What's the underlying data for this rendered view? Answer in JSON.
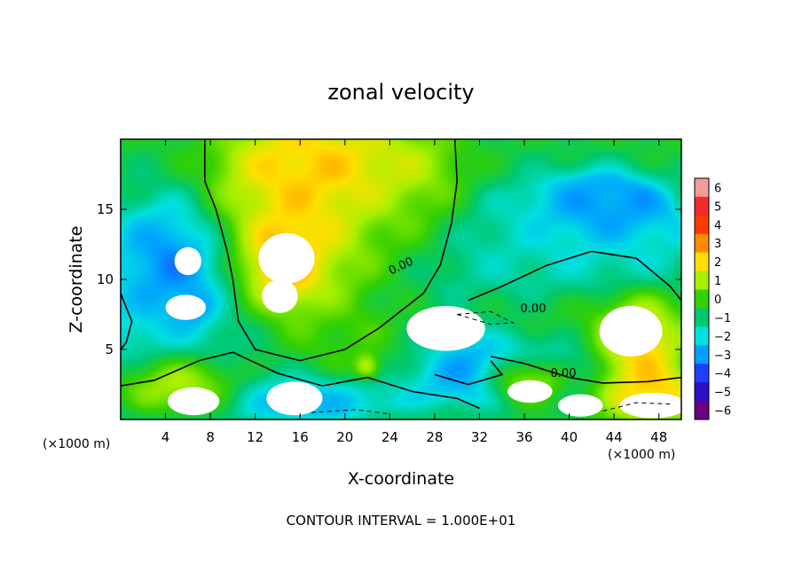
{
  "chart_data": {
    "type": "heatmap",
    "title": "zonal velocity",
    "xlabel": "X-coordinate",
    "ylabel": "Z-coordinate",
    "x_unit_left": "(×1000 m)",
    "x_unit_right": "(×1000 m)",
    "xlim": [
      0,
      50
    ],
    "ylim": [
      0,
      20
    ],
    "x_ticks": [
      4,
      8,
      12,
      16,
      20,
      24,
      28,
      32,
      36,
      40,
      44,
      48
    ],
    "y_ticks": [
      5,
      10,
      15
    ],
    "x_tick_labels": [
      "4",
      "8",
      "12",
      "16",
      "20",
      "24",
      "28",
      "32",
      "36",
      "40",
      "44",
      "48"
    ],
    "y_tick_labels": [
      "5",
      "10",
      "15"
    ],
    "colorbar": {
      "levels": [
        6,
        5,
        4,
        3,
        2,
        1,
        0,
        -1,
        -2,
        -3,
        -4,
        -5,
        -6
      ],
      "labels": [
        "6",
        "5",
        "4",
        "3",
        "2",
        "1",
        "0",
        "−1",
        "−2",
        "−3",
        "−4",
        "−5",
        "−6"
      ],
      "colors": [
        "#f49a9a",
        "#ef2b2b",
        "#ff3a00",
        "#ff8c00",
        "#ffe000",
        "#a8f000",
        "#34d000",
        "#00c86e",
        "#00e0e0",
        "#00a0ff",
        "#1f3fff",
        "#2a10c8",
        "#6a0080"
      ]
    },
    "contour_labels": [
      "0.00",
      "0.00",
      "0.00"
    ],
    "footer": "CONTOUR INTERVAL = 1.000E+01",
    "field_blobs": [
      {
        "x": 25,
        "z": 10,
        "rx": 40,
        "rz": 16,
        "value": -1.2
      },
      {
        "x": 4,
        "z": 7,
        "rx": 9,
        "rz": 10,
        "value": -2.5
      },
      {
        "x": 5,
        "z": 11,
        "rx": 4.5,
        "rz": 4,
        "value": -5.5
      },
      {
        "x": 6.5,
        "z": 8,
        "rx": 2,
        "rz": 1.5,
        "value": -4.5
      },
      {
        "x": 16,
        "z": 14,
        "rx": 9,
        "rz": 8,
        "value": 4.5
      },
      {
        "x": 14.5,
        "z": 11,
        "rx": 3.5,
        "rz": 3,
        "value": 5.5
      },
      {
        "x": 20,
        "z": 18,
        "rx": 10,
        "rz": 3,
        "value": 3
      },
      {
        "x": 26,
        "z": 16,
        "rx": 5,
        "rz": 5,
        "value": 1.5
      },
      {
        "x": 43,
        "z": 15,
        "rx": 7,
        "rz": 3,
        "value": -4.5
      },
      {
        "x": 39,
        "z": 12,
        "rx": 14,
        "rz": 4,
        "value": -2
      },
      {
        "x": 42,
        "z": 7,
        "rx": 18,
        "rz": 2.5,
        "value": 0.5
      },
      {
        "x": 46,
        "z": 6,
        "rx": 4,
        "rz": 3,
        "value": 5
      },
      {
        "x": 32,
        "z": 4,
        "rx": 9,
        "rz": 3,
        "value": -5
      },
      {
        "x": 36,
        "z": 3,
        "rx": 4,
        "rz": 2,
        "value": 5
      },
      {
        "x": 5,
        "z": 2.5,
        "rx": 6,
        "rz": 2.5,
        "value": 4.5
      },
      {
        "x": 17,
        "z": 1.5,
        "rx": 8,
        "rz": 1.8,
        "value": -3.5
      },
      {
        "x": 47,
        "z": 2,
        "rx": 5,
        "rz": 2.5,
        "value": 3.5
      },
      {
        "x": 23,
        "z": 5,
        "rx": 7,
        "rz": 3,
        "value": 1
      },
      {
        "x": 22,
        "z": 3.8,
        "rx": 1.2,
        "rz": 1,
        "value": 4.5
      }
    ],
    "saturated_regions": [
      {
        "x": 6,
        "z": 11.3,
        "rx": 1.2,
        "rz": 1.0
      },
      {
        "x": 5.8,
        "z": 8.0,
        "rx": 1.8,
        "rz": 0.9
      },
      {
        "x": 14.8,
        "z": 11.5,
        "rx": 2.5,
        "rz": 1.8
      },
      {
        "x": 14.2,
        "z": 8.8,
        "rx": 1.6,
        "rz": 1.2
      },
      {
        "x": 29,
        "z": 6.5,
        "rx": 3.5,
        "rz": 1.6
      },
      {
        "x": 45.5,
        "z": 6.3,
        "rx": 2.8,
        "rz": 1.8
      },
      {
        "x": 36.5,
        "z": 2.0,
        "rx": 2.0,
        "rz": 0.8
      },
      {
        "x": 15.5,
        "z": 1.5,
        "rx": 2.5,
        "rz": 1.2
      },
      {
        "x": 6.5,
        "z": 1.3,
        "rx": 2.3,
        "rz": 1.0
      },
      {
        "x": 41,
        "z": 1.0,
        "rx": 2.0,
        "rz": 0.8
      },
      {
        "x": 47.5,
        "z": 1.0,
        "rx": 3.0,
        "rz": 0.9
      }
    ],
    "zero_contours": [
      [
        [
          7.5,
          20
        ],
        [
          7.5,
          17
        ],
        [
          8.5,
          15
        ],
        [
          9.5,
          12
        ],
        [
          10,
          10
        ],
        [
          10.5,
          7
        ],
        [
          12,
          5
        ],
        [
          16,
          4.2
        ],
        [
          20,
          5
        ],
        [
          23,
          6.5
        ],
        [
          27,
          9
        ],
        [
          28.5,
          11
        ],
        [
          29.5,
          14
        ],
        [
          30,
          17
        ],
        [
          29.8,
          20
        ]
      ],
      [
        [
          0,
          9
        ],
        [
          1,
          7
        ],
        [
          0.5,
          5.5
        ],
        [
          0,
          5
        ]
      ],
      [
        [
          31,
          8.5
        ],
        [
          34,
          9.5
        ],
        [
          38,
          11
        ],
        [
          42,
          12
        ],
        [
          46,
          11.5
        ],
        [
          49,
          9.5
        ],
        [
          50,
          8.5
        ]
      ],
      [
        [
          33,
          4.5
        ],
        [
          36,
          4
        ],
        [
          40,
          3
        ],
        [
          43,
          2.6
        ],
        [
          47,
          2.7
        ],
        [
          50,
          3
        ]
      ],
      [
        [
          0,
          2.4
        ],
        [
          3,
          2.8
        ],
        [
          7,
          4.2
        ],
        [
          10,
          4.8
        ],
        [
          14,
          3.3
        ],
        [
          18,
          2.4
        ],
        [
          22,
          3
        ],
        [
          26,
          2
        ],
        [
          30,
          1.5
        ],
        [
          32,
          0.8
        ]
      ],
      [
        [
          28,
          3.2
        ],
        [
          31,
          2.5
        ],
        [
          34,
          3.2
        ],
        [
          33,
          4.2
        ]
      ]
    ],
    "dashed_contours": [
      [
        [
          30,
          7.5
        ],
        [
          33,
          6.8
        ],
        [
          35,
          6.9
        ],
        [
          33,
          7.7
        ],
        [
          30,
          7.5
        ]
      ],
      [
        [
          43,
          0.6
        ],
        [
          46,
          1.2
        ],
        [
          49,
          1.1
        ]
      ],
      [
        [
          17,
          0.5
        ],
        [
          21,
          0.7
        ],
        [
          24,
          0.4
        ]
      ]
    ]
  }
}
